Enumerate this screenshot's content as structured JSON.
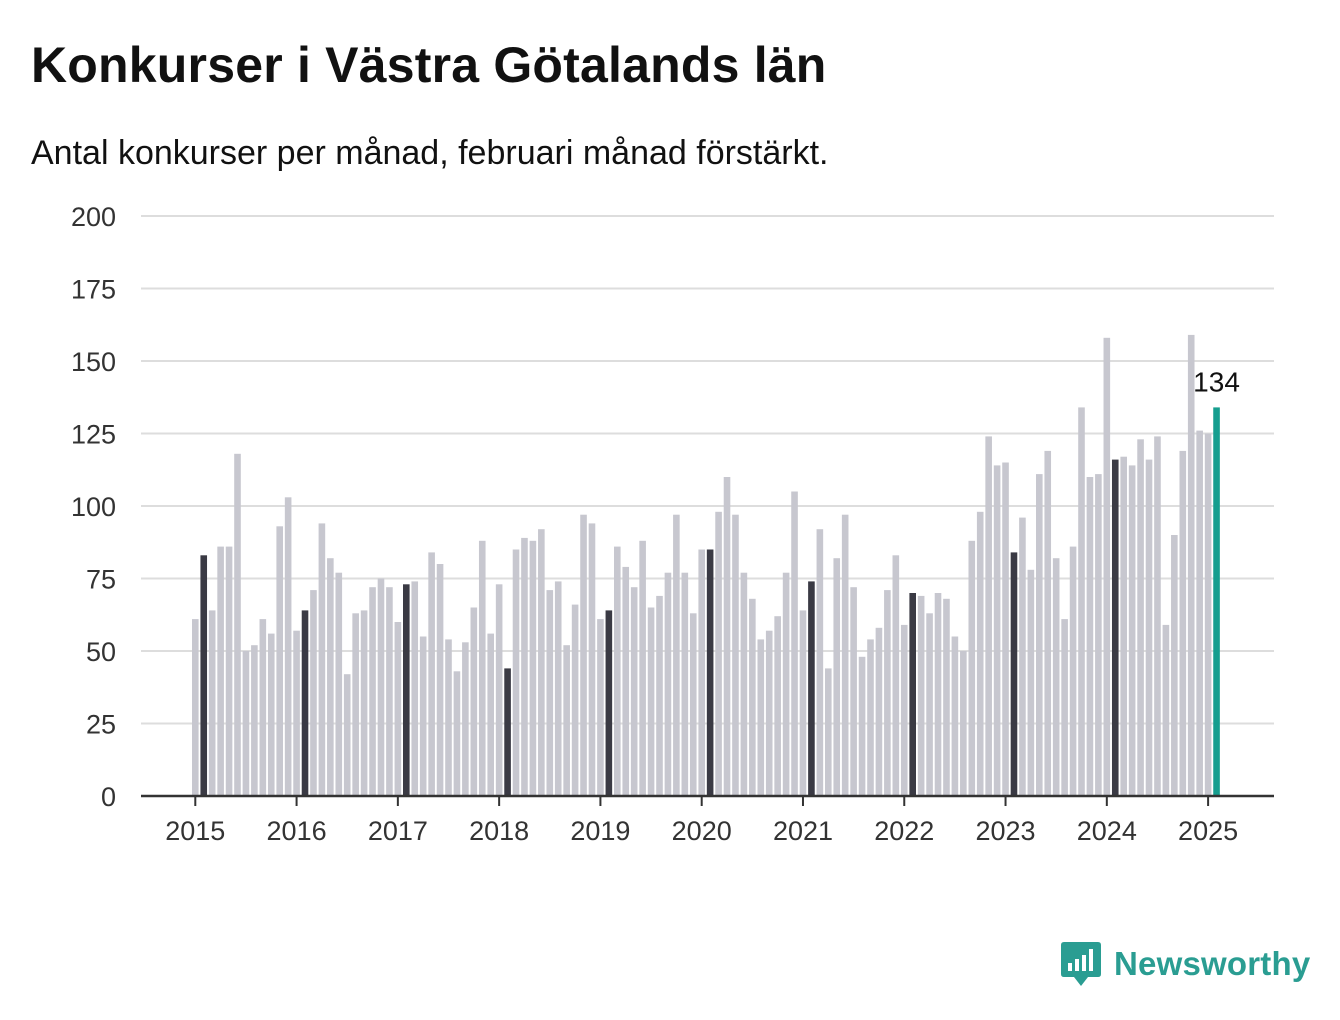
{
  "header": {
    "title": "Konkurser i Västra Götalands län",
    "subtitle": "Antal konkurser per månad, februari månad förstärkt."
  },
  "brand": {
    "name": "Newsworthy",
    "logo_icon": "newsworthy-bar-chart-logo-icon"
  },
  "colors": {
    "bar": "#c7c7cf",
    "highlight_bar": "#3a3a44",
    "latest_bar": "#169e8f",
    "grid": "#dddddd",
    "axis": "#333333",
    "brand": "#2a9d92"
  },
  "chart_data": {
    "type": "bar",
    "title": "Konkurser i Västra Götalands län",
    "subtitle": "Antal konkurser per månad, februari månad förstärkt.",
    "xlabel": "",
    "ylabel": "",
    "ylim": [
      0,
      200
    ],
    "yticks": [
      0,
      25,
      50,
      75,
      100,
      125,
      150,
      175,
      200
    ],
    "xticks": [
      "2015",
      "2016",
      "2017",
      "2018",
      "2019",
      "2020",
      "2021",
      "2022",
      "2023",
      "2024",
      "2025"
    ],
    "grid": true,
    "start": "2015-01",
    "end": "2025-02",
    "highlight_month": "February",
    "latest_label": "134",
    "values": [
      61,
      83,
      64,
      86,
      86,
      118,
      50,
      52,
      61,
      56,
      93,
      103,
      57,
      64,
      71,
      94,
      82,
      77,
      42,
      63,
      64,
      72,
      75,
      72,
      60,
      73,
      74,
      55,
      84,
      80,
      54,
      43,
      53,
      65,
      88,
      56,
      73,
      44,
      85,
      89,
      88,
      92,
      71,
      74,
      52,
      66,
      97,
      94,
      61,
      64,
      86,
      79,
      72,
      88,
      65,
      69,
      77,
      97,
      77,
      63,
      85,
      85,
      98,
      110,
      97,
      77,
      68,
      54,
      57,
      62,
      77,
      105,
      64,
      74,
      92,
      44,
      82,
      97,
      72,
      48,
      54,
      58,
      71,
      83,
      59,
      70,
      69,
      63,
      70,
      68,
      55,
      50,
      88,
      98,
      124,
      114,
      115,
      84,
      96,
      78,
      111,
      119,
      82,
      61,
      86,
      134,
      110,
      111,
      158,
      116,
      117,
      114,
      123,
      116,
      124,
      59,
      90,
      119,
      159,
      126,
      125,
      134
    ]
  }
}
